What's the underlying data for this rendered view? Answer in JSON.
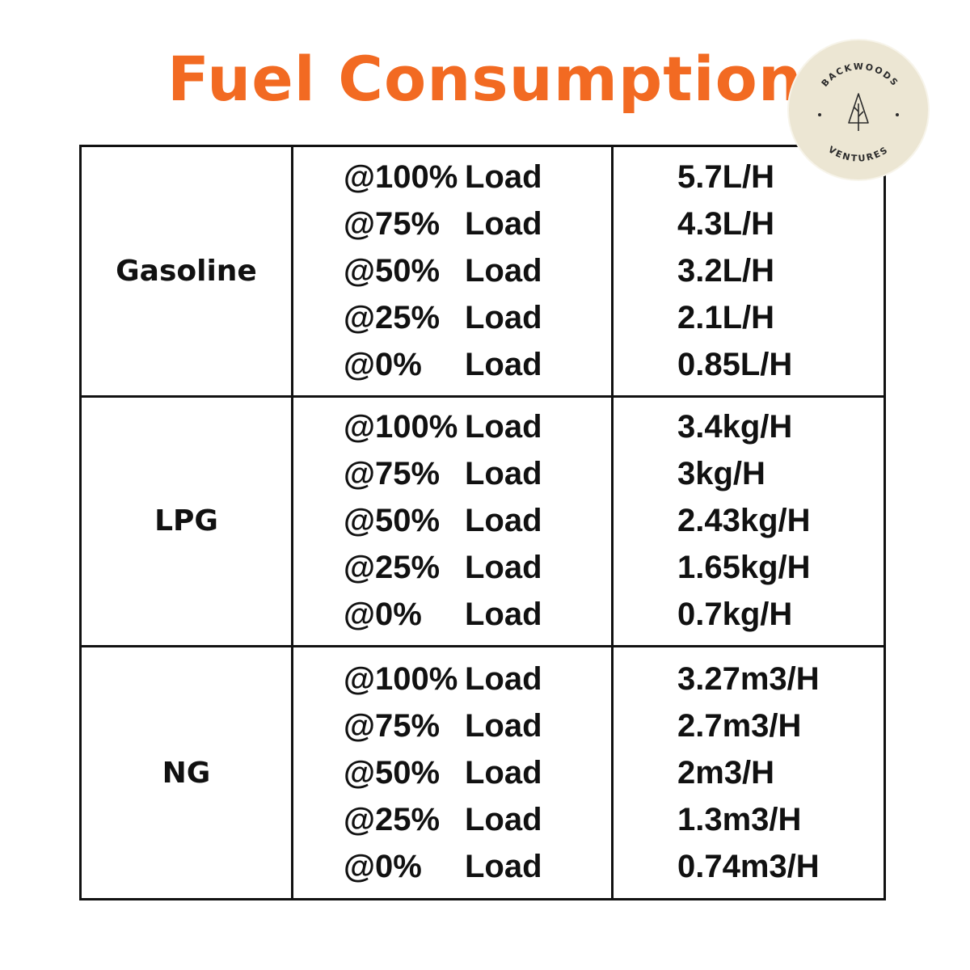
{
  "title": "Fuel Consumption",
  "logo": {
    "text_top": "BACKWOODS",
    "text_bottom": "VENTURES",
    "icon": "tree-icon",
    "background": "#ece6d3"
  },
  "colors": {
    "title": "#f26a22",
    "text": "#111111",
    "border": "#111111"
  },
  "table": {
    "rows": [
      {
        "fuel": "Gasoline",
        "loads": [
          {
            "pct": "@100%",
            "label": "Load",
            "rate": "5.7L/H"
          },
          {
            "pct": "@75%",
            "label": "Load",
            "rate": "4.3L/H"
          },
          {
            "pct": "@50%",
            "label": "Load",
            "rate": "3.2L/H"
          },
          {
            "pct": "@25%",
            "label": "Load",
            "rate": "2.1L/H"
          },
          {
            "pct": "@0%",
            "label": "Load",
            "rate": "0.85L/H"
          }
        ]
      },
      {
        "fuel": "LPG",
        "loads": [
          {
            "pct": "@100%",
            "label": "Load",
            "rate": "3.4kg/H"
          },
          {
            "pct": "@75%",
            "label": "Load",
            "rate": "3kg/H"
          },
          {
            "pct": "@50%",
            "label": "Load",
            "rate": "2.43kg/H"
          },
          {
            "pct": "@25%",
            "label": "Load",
            "rate": "1.65kg/H"
          },
          {
            "pct": "@0%",
            "label": "Load",
            "rate": "0.7kg/H"
          }
        ]
      },
      {
        "fuel": "NG",
        "loads": [
          {
            "pct": "@100%",
            "label": "Load",
            "rate": "3.27m3/H"
          },
          {
            "pct": "@75%",
            "label": "Load",
            "rate": "2.7m3/H"
          },
          {
            "pct": "@50%",
            "label": "Load",
            "rate": "2m3/H"
          },
          {
            "pct": "@25%",
            "label": "Load",
            "rate": "1.3m3/H"
          },
          {
            "pct": "@0%",
            "label": "Load",
            "rate": "0.74m3/H"
          }
        ]
      }
    ]
  }
}
